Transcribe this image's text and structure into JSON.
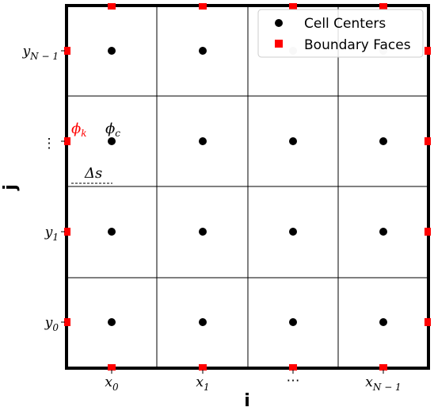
{
  "axes": {
    "xlabel": "i",
    "ylabel": "j",
    "x_ticks": [
      {
        "base": "x",
        "sub": "0"
      },
      {
        "base": "x",
        "sub": "1"
      },
      {
        "base": "⋯",
        "sub": ""
      },
      {
        "base": "x",
        "sub": "N − 1"
      }
    ],
    "y_ticks": [
      {
        "base": "y",
        "sub": "0"
      },
      {
        "base": "y",
        "sub": "1"
      },
      {
        "base": "⋮",
        "sub": ""
      },
      {
        "base": "y",
        "sub": "N − 1"
      }
    ]
  },
  "legend": {
    "cell_centers": "Cell Centers",
    "boundary_faces": "Boundary Faces"
  },
  "annotations": {
    "phi_k": "ϕ",
    "phi_k_sub": "k",
    "phi_c": "ϕ",
    "phi_c_sub": "c",
    "delta_s": "Δs"
  },
  "colors": {
    "boundary": "#ff0000",
    "center": "#000000",
    "phi_k": "#ff0000",
    "phi_c": "#000000"
  }
}
